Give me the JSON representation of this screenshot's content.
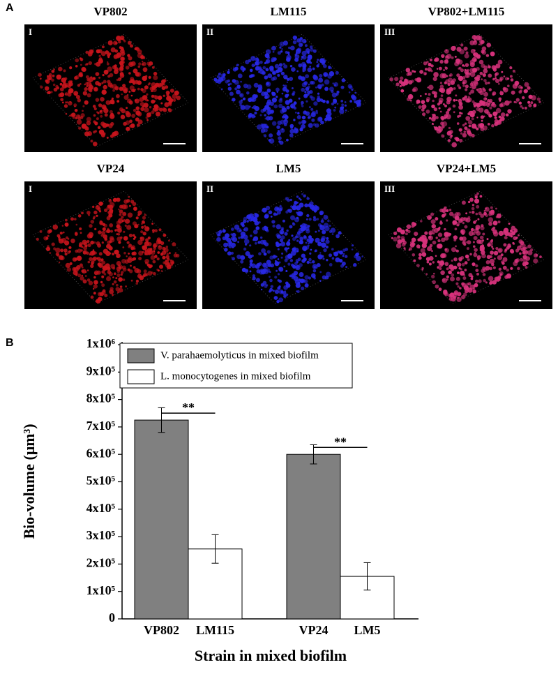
{
  "panel_a": {
    "label": "A",
    "rows": [
      [
        {
          "title": "VP802",
          "numeral": "I"
        },
        {
          "title": "LM115",
          "numeral": "II"
        },
        {
          "title": "VP802+LM115",
          "numeral": "III"
        }
      ],
      [
        {
          "title": "VP24",
          "numeral": "I"
        },
        {
          "title": "LM5",
          "numeral": "II"
        },
        {
          "title": "VP24+LM5",
          "numeral": "III"
        }
      ]
    ]
  },
  "panel_b": {
    "label": "B"
  },
  "chart_data": {
    "type": "bar",
    "x_label": "Strain in mixed biofilm",
    "y_label": "Bio-volume (μm³)",
    "categories": [
      null,
      null
    ],
    "series": [
      {
        "name": "V. parahaemolyticus in mixed biofilm",
        "color": "#808080",
        "labels": [
          "VP802",
          "VP24"
        ],
        "values": [
          725000,
          600000
        ],
        "errors": [
          45000,
          35000
        ]
      },
      {
        "name": "L. monocytogenes in mixed biofilm",
        "color": "#ffffff",
        "labels": [
          "LM115",
          "LM5"
        ],
        "values": [
          255000,
          155000
        ],
        "errors": [
          52000,
          50000
        ]
      }
    ],
    "significance": [
      "**",
      "**"
    ],
    "ylim": [
      0,
      1000000
    ],
    "yticks": [
      0,
      {
        "value": 100000,
        "label": "1x10⁵"
      },
      {
        "value": 200000,
        "label": "2x10⁵"
      },
      {
        "value": 300000,
        "label": "3x10⁵"
      },
      {
        "value": 400000,
        "label": "4x10⁵"
      },
      {
        "value": 500000,
        "label": "5x10⁵"
      },
      {
        "value": 600000,
        "label": "6x10⁵"
      },
      {
        "value": 700000,
        "label": "7x10⁵"
      },
      {
        "value": 800000,
        "label": "8x10⁵"
      },
      {
        "value": 900000,
        "label": "9x10⁵"
      },
      {
        "value": 1000000,
        "label": "1x10⁶"
      }
    ],
    "legend": "upper-left"
  }
}
